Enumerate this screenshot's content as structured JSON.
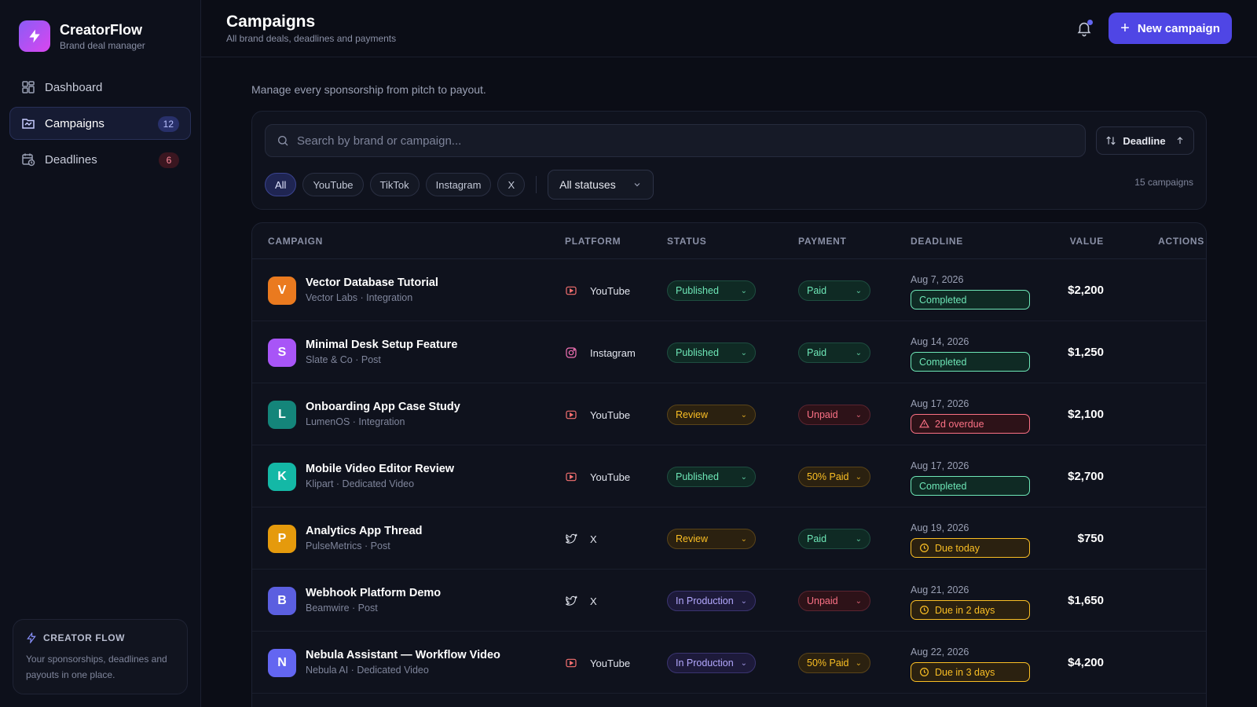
{
  "brand": {
    "name": "CreatorFlow",
    "subtitle": "Brand deal manager"
  },
  "nav": [
    {
      "label": "Dashboard",
      "icon": "dashboard-icon",
      "badge": ""
    },
    {
      "label": "Campaigns",
      "icon": "campaign-folder-icon",
      "badge": "12",
      "active": true
    },
    {
      "label": "Deadlines",
      "icon": "calendar-clock-icon",
      "badge": "6"
    }
  ],
  "side_card": {
    "title": "CREATOR FLOW",
    "text": "Your sponsorships, deadlines and payouts in one place."
  },
  "header": {
    "title": "Campaigns",
    "subtitle": "All brand deals, deadlines and payments",
    "new_button": "New campaign"
  },
  "intro": "Manage every sponsorship from pitch to payout.",
  "filters": {
    "search_placeholder": "Search by brand or campaign...",
    "sort_label": "Deadline",
    "platform_chips": [
      "All",
      "YouTube",
      "TikTok",
      "Instagram",
      "X"
    ],
    "active_chip": "All",
    "status_select": "All statuses",
    "count": "15 campaigns"
  },
  "table": {
    "headers": {
      "campaign": "CAMPAIGN",
      "platform": "PLATFORM",
      "status": "STATUS",
      "payment": "PAYMENT",
      "deadline": "DEADLINE",
      "value": "VALUE",
      "actions": "ACTIONS"
    },
    "rows": [
      {
        "initial": "V",
        "avatar_color": "#ea7a1f",
        "name": "Vector Database Tutorial",
        "meta": "Vector Labs · Integration",
        "platform": "YouTube",
        "status": "Published",
        "payment": "Paid",
        "date": "Aug 7, 2026",
        "deadline": "Completed",
        "value": "$2,200"
      },
      {
        "initial": "S",
        "avatar_color": "#a855f7",
        "name": "Minimal Desk Setup Feature",
        "meta": "Slate & Co · Post",
        "platform": "Instagram",
        "status": "Published",
        "payment": "Paid",
        "date": "Aug 14, 2026",
        "deadline": "Completed",
        "value": "$1,250"
      },
      {
        "initial": "L",
        "avatar_color": "#14857a",
        "name": "Onboarding App Case Study",
        "meta": "LumenOS · Integration",
        "platform": "YouTube",
        "status": "Review",
        "payment": "Unpaid",
        "date": "Aug 17, 2026",
        "deadline": "2d overdue",
        "value": "$2,100"
      },
      {
        "initial": "K",
        "avatar_color": "#14b8a6",
        "name": "Mobile Video Editor Review",
        "meta": "Klipart · Dedicated Video",
        "platform": "YouTube",
        "status": "Published",
        "payment": "50% Paid",
        "date": "Aug 17, 2026",
        "deadline": "Completed",
        "value": "$2,700"
      },
      {
        "initial": "P",
        "avatar_color": "#e59a0c",
        "name": "Analytics App Thread",
        "meta": "PulseMetrics · Post",
        "platform": "X",
        "status": "Review",
        "payment": "Paid",
        "date": "Aug 19, 2026",
        "deadline": "Due today",
        "value": "$750"
      },
      {
        "initial": "B",
        "avatar_color": "#5b5fe0",
        "name": "Webhook Platform Demo",
        "meta": "Beamwire · Post",
        "platform": "X",
        "status": "In Production",
        "payment": "Unpaid",
        "date": "Aug 21, 2026",
        "deadline": "Due in 2 days",
        "value": "$1,650"
      },
      {
        "initial": "N",
        "avatar_color": "#6366f1",
        "name": "Nebula Assistant — Workflow Video",
        "meta": "Nebula AI · Dedicated Video",
        "platform": "YouTube",
        "status": "In Production",
        "payment": "50% Paid",
        "date": "Aug 22, 2026",
        "deadline": "Due in 3 days",
        "value": "$4,200"
      }
    ]
  },
  "colors": {
    "accent": "#4f46e5",
    "success": "#6ee7b7",
    "warning": "#fbbf24",
    "danger": "#fb7185",
    "production": "#b4a9ff"
  }
}
